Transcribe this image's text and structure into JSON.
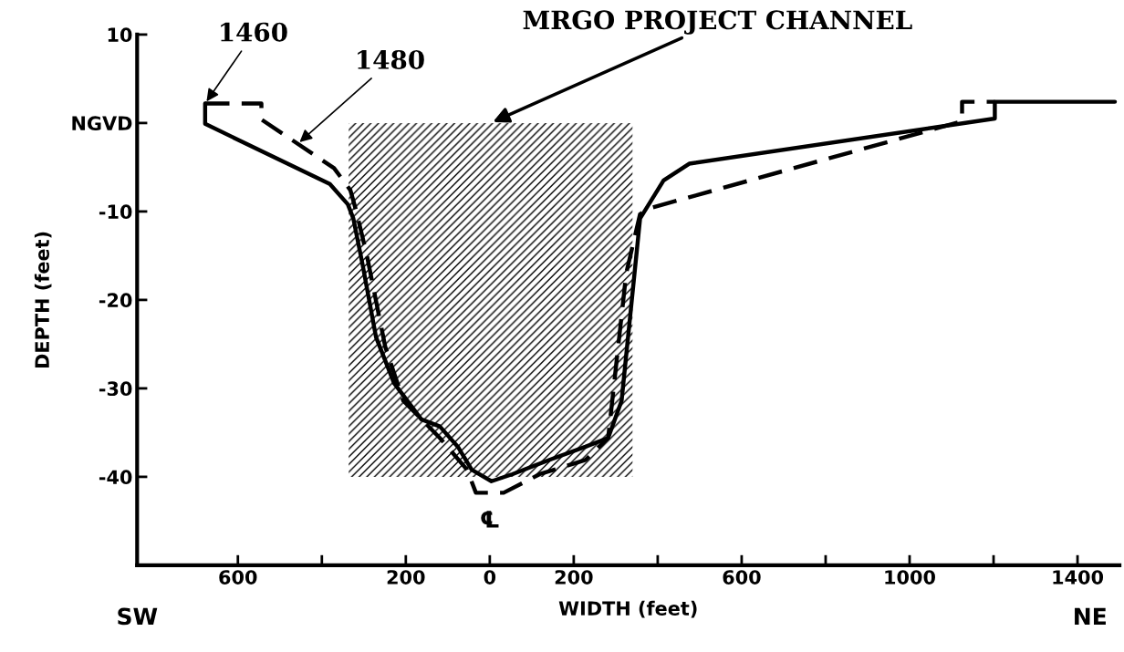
{
  "chart_data": {
    "type": "line",
    "xlabel": "WIDTH (feet)",
    "ylabel": "DEPTH (feet)",
    "xlim": [
      -840,
      1500
    ],
    "ylim": [
      -50,
      10
    ],
    "xticks": [
      {
        "value": -600,
        "label": "600"
      },
      {
        "value": -400,
        "label": null
      },
      {
        "value": -200,
        "label": "200"
      },
      0,
      200,
      {
        "value": 400,
        "label": null
      },
      600,
      {
        "value": 800,
        "label": null
      },
      1000,
      {
        "value": 1200,
        "label": null
      },
      1400
    ],
    "yticks": [
      10,
      {
        "value": 0,
        "label": "NGVD"
      },
      -10,
      -20,
      -30,
      -40
    ],
    "grid": false,
    "legend": false,
    "series": [
      {
        "name": "MRGO PROJECT CHANNEL",
        "type": "area",
        "color": "#000000",
        "x": [
          -336,
          340
        ],
        "values": [
          -40,
          -40
        ]
      },
      {
        "name": "1460",
        "line_style": "solid",
        "color": "#000000",
        "x": [
          -678,
          -678,
          -381,
          -338,
          -325,
          -303,
          -271,
          -228,
          -163,
          -119,
          -76,
          -43,
          4,
          54,
          141,
          228,
          282,
          314,
          358,
          414,
          475,
          1203,
          1203,
          1489
        ],
        "values": [
          2.2,
          -0.1,
          -6.9,
          -9.2,
          -10.8,
          -16.0,
          -24.2,
          -29.4,
          -33.5,
          -34.3,
          -36.6,
          -39.2,
          -40.5,
          -39.7,
          -38.1,
          -36.6,
          -35.6,
          -31.4,
          -10.8,
          -6.5,
          -4.6,
          0.5,
          2.4,
          2.4
        ]
      },
      {
        "name": "1480",
        "line_style": "dashed",
        "color": "#000000",
        "x": [
          -678,
          -544,
          -544,
          -371,
          -332,
          -319,
          -293,
          -249,
          -206,
          -119,
          -54,
          -33,
          33,
          119,
          228,
          282,
          325,
          358,
          384,
          1125,
          1125,
          1203
        ],
        "values": [
          2.2,
          2.2,
          0.4,
          -5.1,
          -7.6,
          -9.8,
          -14.9,
          -25.3,
          -31.4,
          -35.6,
          -39.2,
          -41.8,
          -41.8,
          -39.7,
          -38.1,
          -35.6,
          -17.0,
          -10.3,
          -9.6,
          0.2,
          2.4,
          2.4
        ]
      }
    ],
    "annotations": [
      "℄",
      "SW",
      "NE"
    ]
  }
}
